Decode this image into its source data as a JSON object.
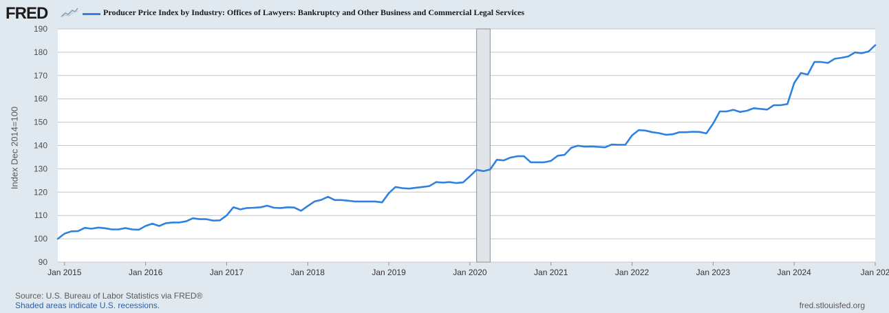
{
  "branding": {
    "logo_text": "FRED",
    "logo_icon": "chart-sparkline-icon"
  },
  "colors": {
    "background": "#e1e9f0",
    "plot_background": "#ffffff",
    "series_line": "#2e81e0",
    "gridline": "#c0c6cc",
    "recession_shade": "#e1e5ea"
  },
  "chart_data": {
    "type": "line",
    "title": "Producer Price Index by Industry: Offices of Lawyers: Bankruptcy and Other Business and Commercial Legal Services",
    "xlabel": "",
    "ylabel": "Index Dec 2014=100",
    "ylim": [
      90,
      190
    ],
    "y_ticks": [
      90,
      100,
      110,
      120,
      130,
      140,
      150,
      160,
      170,
      180,
      190
    ],
    "xlim": [
      2014.917,
      2025.0
    ],
    "x_ticks": [
      {
        "x": 2015,
        "label": "Jan 2015"
      },
      {
        "x": 2016,
        "label": "Jan 2016"
      },
      {
        "x": 2017,
        "label": "Jan 2017"
      },
      {
        "x": 2018,
        "label": "Jan 2018"
      },
      {
        "x": 2019,
        "label": "Jan 2019"
      },
      {
        "x": 2020,
        "label": "Jan 2020"
      },
      {
        "x": 2021,
        "label": "Jan 2021"
      },
      {
        "x": 2022,
        "label": "Jan 2022"
      },
      {
        "x": 2023,
        "label": "Jan 2023"
      },
      {
        "x": 2024,
        "label": "Jan 2024"
      },
      {
        "x": 2025,
        "label": "Jan 202"
      }
    ],
    "grid": true,
    "legend": "top-left",
    "recessions": [
      {
        "start": 2020.083,
        "end": 2020.25
      }
    ],
    "series": [
      {
        "name": "Producer Price Index by Industry: Offices of Lawyers: Bankruptcy and Other Business and Commercial Legal Services",
        "points": [
          [
            2014.917,
            100.0
          ],
          [
            2015.0,
            102.2
          ],
          [
            2015.083,
            103.2
          ],
          [
            2015.167,
            103.3
          ],
          [
            2015.25,
            104.7
          ],
          [
            2015.333,
            104.3
          ],
          [
            2015.417,
            104.8
          ],
          [
            2015.5,
            104.5
          ],
          [
            2015.583,
            104.0
          ],
          [
            2015.667,
            104.0
          ],
          [
            2015.75,
            104.6
          ],
          [
            2015.833,
            104.0
          ],
          [
            2015.917,
            103.9
          ],
          [
            2016.0,
            105.5
          ],
          [
            2016.083,
            106.5
          ],
          [
            2016.167,
            105.5
          ],
          [
            2016.25,
            106.7
          ],
          [
            2016.333,
            107.0
          ],
          [
            2016.417,
            107.0
          ],
          [
            2016.5,
            107.5
          ],
          [
            2016.583,
            108.8
          ],
          [
            2016.667,
            108.4
          ],
          [
            2016.75,
            108.4
          ],
          [
            2016.833,
            107.8
          ],
          [
            2016.917,
            107.9
          ],
          [
            2017.0,
            110.0
          ],
          [
            2017.083,
            113.5
          ],
          [
            2017.167,
            112.6
          ],
          [
            2017.25,
            113.2
          ],
          [
            2017.333,
            113.3
          ],
          [
            2017.417,
            113.5
          ],
          [
            2017.5,
            114.2
          ],
          [
            2017.583,
            113.3
          ],
          [
            2017.667,
            113.2
          ],
          [
            2017.75,
            113.5
          ],
          [
            2017.833,
            113.4
          ],
          [
            2017.917,
            112.0
          ],
          [
            2018.0,
            114.0
          ],
          [
            2018.083,
            116.0
          ],
          [
            2018.167,
            116.7
          ],
          [
            2018.25,
            118.0
          ],
          [
            2018.333,
            116.6
          ],
          [
            2018.417,
            116.6
          ],
          [
            2018.5,
            116.3
          ],
          [
            2018.583,
            116.0
          ],
          [
            2018.667,
            116.0
          ],
          [
            2018.75,
            116.0
          ],
          [
            2018.833,
            116.0
          ],
          [
            2018.917,
            115.6
          ],
          [
            2019.0,
            119.6
          ],
          [
            2019.083,
            122.2
          ],
          [
            2019.167,
            121.7
          ],
          [
            2019.25,
            121.5
          ],
          [
            2019.333,
            121.9
          ],
          [
            2019.417,
            122.2
          ],
          [
            2019.5,
            122.6
          ],
          [
            2019.583,
            124.3
          ],
          [
            2019.667,
            124.1
          ],
          [
            2019.75,
            124.3
          ],
          [
            2019.833,
            123.9
          ],
          [
            2019.917,
            124.2
          ],
          [
            2020.0,
            126.8
          ],
          [
            2020.083,
            129.6
          ],
          [
            2020.167,
            129.0
          ],
          [
            2020.25,
            129.7
          ],
          [
            2020.333,
            133.9
          ],
          [
            2020.417,
            133.6
          ],
          [
            2020.5,
            134.8
          ],
          [
            2020.583,
            135.4
          ],
          [
            2020.667,
            135.4
          ],
          [
            2020.75,
            132.8
          ],
          [
            2020.833,
            132.8
          ],
          [
            2020.917,
            132.8
          ],
          [
            2021.0,
            133.4
          ],
          [
            2021.083,
            135.6
          ],
          [
            2021.167,
            136.0
          ],
          [
            2021.25,
            139.0
          ],
          [
            2021.333,
            139.9
          ],
          [
            2021.417,
            139.5
          ],
          [
            2021.5,
            139.6
          ],
          [
            2021.583,
            139.4
          ],
          [
            2021.667,
            139.2
          ],
          [
            2021.75,
            140.4
          ],
          [
            2021.833,
            140.3
          ],
          [
            2021.917,
            140.3
          ],
          [
            2022.0,
            144.3
          ],
          [
            2022.083,
            146.6
          ],
          [
            2022.167,
            146.4
          ],
          [
            2022.25,
            145.7
          ],
          [
            2022.333,
            145.3
          ],
          [
            2022.417,
            144.6
          ],
          [
            2022.5,
            144.8
          ],
          [
            2022.583,
            145.7
          ],
          [
            2022.667,
            145.7
          ],
          [
            2022.75,
            145.9
          ],
          [
            2022.833,
            145.8
          ],
          [
            2022.917,
            145.2
          ],
          [
            2023.0,
            149.4
          ],
          [
            2023.083,
            154.6
          ],
          [
            2023.167,
            154.6
          ],
          [
            2023.25,
            155.3
          ],
          [
            2023.333,
            154.4
          ],
          [
            2023.417,
            154.9
          ],
          [
            2023.5,
            156.0
          ],
          [
            2023.583,
            155.7
          ],
          [
            2023.667,
            155.4
          ],
          [
            2023.75,
            157.3
          ],
          [
            2023.833,
            157.3
          ],
          [
            2023.917,
            157.8
          ],
          [
            2024.0,
            166.8
          ],
          [
            2024.083,
            171.1
          ],
          [
            2024.167,
            170.4
          ],
          [
            2024.25,
            175.8
          ],
          [
            2024.333,
            175.8
          ],
          [
            2024.417,
            175.4
          ],
          [
            2024.5,
            177.2
          ],
          [
            2024.583,
            177.6
          ],
          [
            2024.667,
            178.2
          ],
          [
            2024.75,
            179.9
          ],
          [
            2024.833,
            179.6
          ],
          [
            2024.917,
            180.3
          ],
          [
            2025.0,
            183.0
          ]
        ]
      }
    ]
  },
  "footer": {
    "source": "Source: U.S. Bureau of Labor Statistics via FRED®",
    "recession_note": "Shaded areas indicate U.S. recessions.",
    "site": "fred.stlouisfed.org"
  }
}
